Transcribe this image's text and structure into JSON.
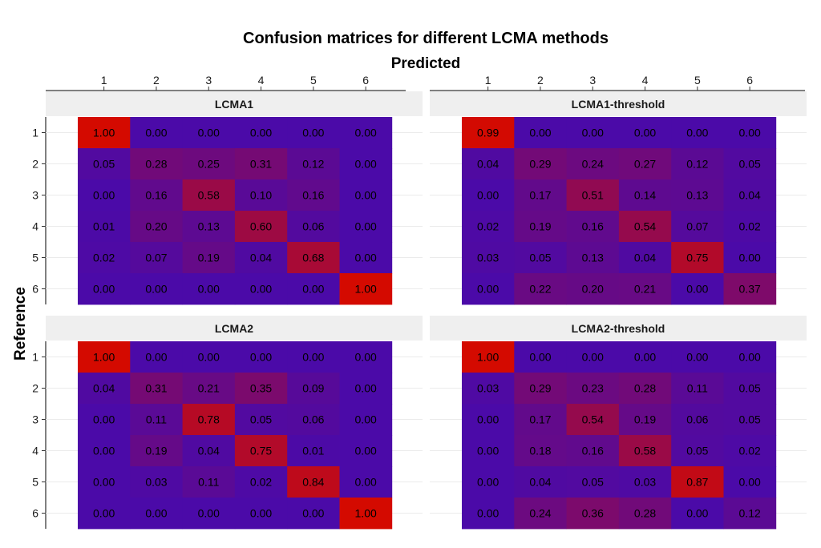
{
  "chart_data": {
    "type": "heatmap",
    "title": "Confusion matrices for different LCMA methods",
    "xlabel": "Predicted",
    "ylabel": "Reference",
    "x_categories": [
      "1",
      "2",
      "3",
      "4",
      "5",
      "6"
    ],
    "y_categories": [
      "1",
      "2",
      "3",
      "4",
      "5",
      "6"
    ],
    "value_range": [
      0,
      1
    ],
    "color_low": "#4b0aa8",
    "color_high": "#d40a00",
    "x_axis_position": "top",
    "panels": [
      {
        "name": "LCMA1",
        "matrix": [
          [
            "1.00",
            "0.00",
            "0.00",
            "0.00",
            "0.00",
            "0.00"
          ],
          [
            "0.05",
            "0.28",
            "0.25",
            "0.31",
            "0.12",
            "0.00"
          ],
          [
            "0.00",
            "0.16",
            "0.58",
            "0.10",
            "0.16",
            "0.00"
          ],
          [
            "0.01",
            "0.20",
            "0.13",
            "0.60",
            "0.06",
            "0.00"
          ],
          [
            "0.02",
            "0.07",
            "0.19",
            "0.04",
            "0.68",
            "0.00"
          ],
          [
            "0.00",
            "0.00",
            "0.00",
            "0.00",
            "0.00",
            "1.00"
          ]
        ]
      },
      {
        "name": "LCMA1-threshold",
        "matrix": [
          [
            "0.99",
            "0.00",
            "0.00",
            "0.00",
            "0.00",
            "0.00"
          ],
          [
            "0.04",
            "0.29",
            "0.24",
            "0.27",
            "0.12",
            "0.05"
          ],
          [
            "0.00",
            "0.17",
            "0.51",
            "0.14",
            "0.13",
            "0.04"
          ],
          [
            "0.02",
            "0.19",
            "0.16",
            "0.54",
            "0.07",
            "0.02"
          ],
          [
            "0.03",
            "0.05",
            "0.13",
            "0.04",
            "0.75",
            "0.00"
          ],
          [
            "0.00",
            "0.22",
            "0.20",
            "0.21",
            "0.00",
            "0.37"
          ]
        ]
      },
      {
        "name": "LCMA2",
        "matrix": [
          [
            "1.00",
            "0.00",
            "0.00",
            "0.00",
            "0.00",
            "0.00"
          ],
          [
            "0.04",
            "0.31",
            "0.21",
            "0.35",
            "0.09",
            "0.00"
          ],
          [
            "0.00",
            "0.11",
            "0.78",
            "0.05",
            "0.06",
            "0.00"
          ],
          [
            "0.00",
            "0.19",
            "0.04",
            "0.75",
            "0.01",
            "0.00"
          ],
          [
            "0.00",
            "0.03",
            "0.11",
            "0.02",
            "0.84",
            "0.00"
          ],
          [
            "0.00",
            "0.00",
            "0.00",
            "0.00",
            "0.00",
            "1.00"
          ]
        ]
      },
      {
        "name": "LCMA2-threshold",
        "matrix": [
          [
            "1.00",
            "0.00",
            "0.00",
            "0.00",
            "0.00",
            "0.00"
          ],
          [
            "0.03",
            "0.29",
            "0.23",
            "0.28",
            "0.11",
            "0.05"
          ],
          [
            "0.00",
            "0.17",
            "0.54",
            "0.19",
            "0.06",
            "0.05"
          ],
          [
            "0.00",
            "0.18",
            "0.16",
            "0.58",
            "0.05",
            "0.02"
          ],
          [
            "0.00",
            "0.04",
            "0.05",
            "0.03",
            "0.87",
            "0.00"
          ],
          [
            "0.00",
            "0.24",
            "0.36",
            "0.28",
            "0.00",
            "0.12"
          ]
        ]
      }
    ]
  }
}
